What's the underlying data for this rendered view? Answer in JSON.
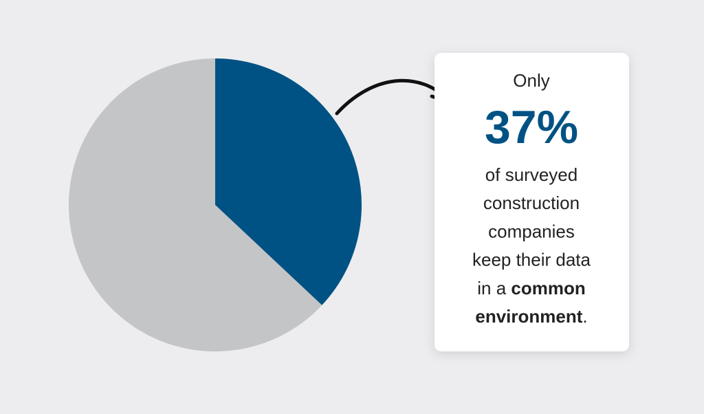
{
  "chart_data": {
    "type": "pie",
    "values": [
      37,
      63
    ],
    "value_labels": [
      "37%",
      null
    ],
    "colors": [
      "#005284",
      "#c4c5c7"
    ],
    "annotation": {
      "lead": "Only",
      "lines": [
        [
          {
            "text": "of surveyed"
          }
        ],
        [
          {
            "text": "construction"
          }
        ],
        [
          {
            "text": "companies"
          }
        ],
        [
          {
            "text": "keep their data"
          }
        ],
        [
          {
            "text": "in a "
          },
          {
            "text": "common",
            "bold": true
          }
        ],
        [
          {
            "text": "environment",
            "bold": true
          },
          {
            "text": "."
          }
        ]
      ]
    }
  }
}
